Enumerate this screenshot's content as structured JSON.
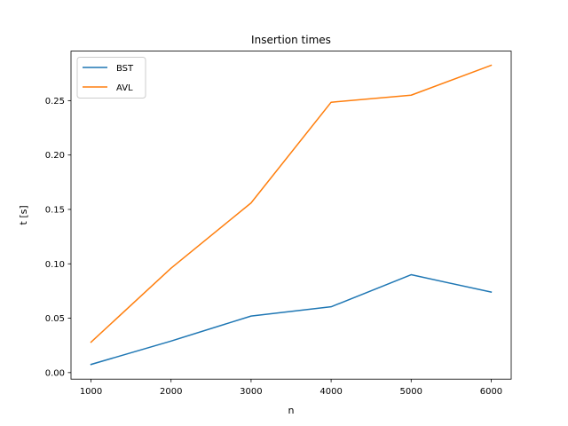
{
  "chart_data": {
    "type": "line",
    "title": "Insertion times",
    "xlabel": "n",
    "ylabel": "t [s]",
    "x": [
      1000,
      2000,
      3000,
      4000,
      5000,
      6000
    ],
    "xlim": [
      750,
      6250
    ],
    "ylim": [
      -0.006,
      0.2955
    ],
    "xticks": [
      1000,
      2000,
      3000,
      4000,
      5000,
      6000
    ],
    "yticks": [
      "0.00",
      "0.05",
      "0.10",
      "0.15",
      "0.20",
      "0.25"
    ],
    "grid": false,
    "legend": "top-left",
    "series": [
      {
        "name": "BST",
        "color": "#1f77b4",
        "values": [
          0.0075,
          0.029,
          0.052,
          0.0605,
          0.09,
          0.074
        ]
      },
      {
        "name": "AVL",
        "color": "#ff7f0e",
        "values": [
          0.028,
          0.096,
          0.156,
          0.2485,
          0.255,
          0.2825
        ]
      }
    ]
  }
}
